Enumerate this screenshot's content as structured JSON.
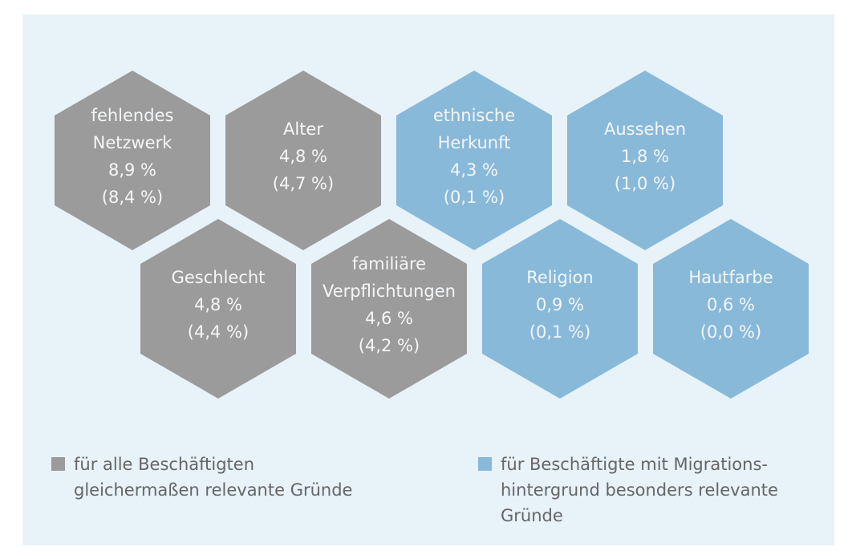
{
  "nodes": [
    {
      "lines": [
        "fehlendes",
        "Netzwerk"
      ],
      "value": "8,9 %",
      "sub": "(8,4 %)",
      "color": "#9b9b9b"
    },
    {
      "lines": [
        "Alter"
      ],
      "value": "4,8 %",
      "sub": "(4,7 %)",
      "color": "#9b9b9b"
    },
    {
      "lines": [
        "ethnische",
        "Herkunft"
      ],
      "value": "4,3 %",
      "sub": "(0,1 %)",
      "color": "#88b9d9"
    },
    {
      "lines": [
        "Aussehen"
      ],
      "value": "1,8 %",
      "sub": "(1,0 %)",
      "color": "#88b9d9"
    },
    {
      "lines": [
        "Geschlecht"
      ],
      "value": "4,8 %",
      "sub": "(4,4 %)",
      "color": "#9b9b9b"
    },
    {
      "lines": [
        "familiäre",
        "Verpflichtungen"
      ],
      "value": "4,6 %",
      "sub": "(4,2 %)",
      "color": "#9b9b9b"
    },
    {
      "lines": [
        "Religion"
      ],
      "value": "0,9 %",
      "sub": "(0,1 %)",
      "color": "#88b9d9"
    },
    {
      "lines": [
        "Hautfarbe"
      ],
      "value": "0,6 %",
      "sub": "(0,0 %)",
      "color": "#88b9d9"
    }
  ],
  "legend": [
    {
      "lines": [
        "für alle Beschäftigten",
        "gleichermaßen relevante Gründe"
      ],
      "color": "#9b9b9b"
    },
    {
      "lines": [
        "für Beschäftigte mit Migrations-",
        "hintergrund besonders relevante",
        "Gründe"
      ],
      "color": "#88b9d9"
    }
  ]
}
